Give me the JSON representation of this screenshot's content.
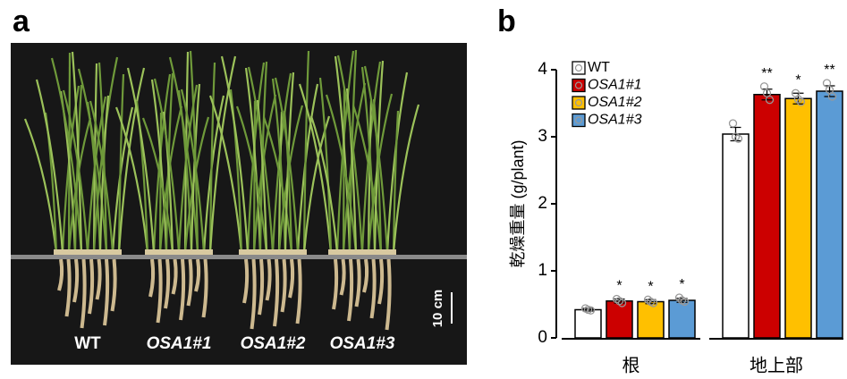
{
  "panel_a": {
    "label": "a",
    "photo_labels": [
      "WT",
      "OSA1#1",
      "OSA1#2",
      "OSA1#3"
    ],
    "scale_bar": "10 cm"
  },
  "chart_data": {
    "type": "bar",
    "panel_label": "b",
    "y_label": "乾燥重量 (g/plant)",
    "categories": [
      "根",
      "地上部"
    ],
    "ylim": [
      0,
      4
    ],
    "yticks": [
      0,
      1,
      2,
      3,
      4
    ],
    "series": [
      {
        "name": "WT",
        "color": "#ffffff",
        "values": [
          0.42,
          3.04
        ],
        "errors": [
          0.02,
          0.1
        ],
        "significance": [
          null,
          null
        ],
        "points": [
          [
            0.44,
            0.42,
            0.41
          ],
          [
            3.2,
            3.0,
            2.97
          ]
        ]
      },
      {
        "name": "OSA1#1",
        "color": "#cc0000",
        "values": [
          0.55,
          3.63
        ],
        "errors": [
          0.03,
          0.08
        ],
        "significance": [
          "*",
          "**"
        ],
        "points": [
          [
            0.58,
            0.55,
            0.52
          ],
          [
            3.75,
            3.65,
            3.55
          ]
        ]
      },
      {
        "name": "OSA1#2",
        "color": "#ffc000",
        "values": [
          0.54,
          3.57
        ],
        "errors": [
          0.03,
          0.08
        ],
        "significance": [
          "*",
          "*"
        ],
        "points": [
          [
            0.57,
            0.54,
            0.52
          ],
          [
            3.65,
            3.56,
            3.52
          ]
        ]
      },
      {
        "name": "OSA1#3",
        "color": "#5b9bd5",
        "values": [
          0.56,
          3.68
        ],
        "errors": [
          0.03,
          0.08
        ],
        "significance": [
          "*",
          "**"
        ],
        "points": [
          [
            0.6,
            0.56,
            0.54
          ],
          [
            3.8,
            3.7,
            3.6
          ]
        ]
      }
    ]
  }
}
